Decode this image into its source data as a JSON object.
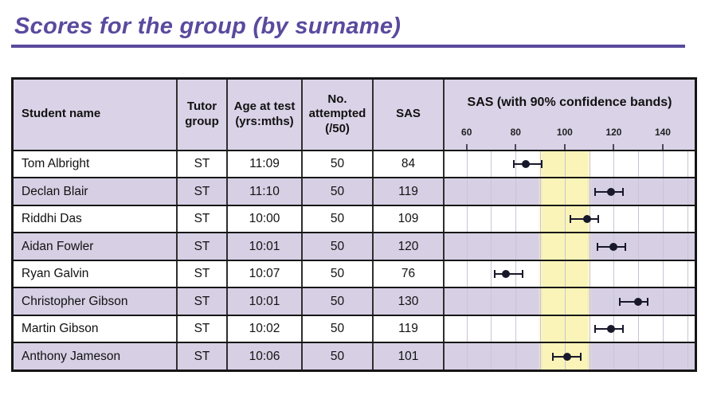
{
  "page": {
    "title": "Scores for the group (by surname)"
  },
  "colors": {
    "title_purple": "#5a4a9e",
    "underline_purple": "#5a4a9e",
    "lavender_header": "#dad2e7",
    "lavender_row": "#d7cfe4",
    "band_yellow": "#faf4b8",
    "gridline": "#c9c5d3",
    "marker": "#18182b",
    "border_dark": "#161616"
  },
  "table": {
    "headers": {
      "student": "Student name",
      "tutor": "Tutor\ngroup",
      "age": "Age at test\n(yrs:mths)",
      "attempted": "No.\nattempted\n(/50)",
      "sas": "SAS",
      "chart": "SAS (with 90% confidence bands)"
    },
    "rows": [
      {
        "name": "Tom Albright",
        "tutor": "ST",
        "age": "11:09",
        "attempted": "50",
        "sas": "84"
      },
      {
        "name": "Declan Blair",
        "tutor": "ST",
        "age": "11:10",
        "attempted": "50",
        "sas": "119"
      },
      {
        "name": "Riddhi Das",
        "tutor": "ST",
        "age": "10:00",
        "attempted": "50",
        "sas": "109"
      },
      {
        "name": "Aidan Fowler",
        "tutor": "ST",
        "age": "10:01",
        "attempted": "50",
        "sas": "120"
      },
      {
        "name": "Ryan Galvin",
        "tutor": "ST",
        "age": "10:07",
        "attempted": "50",
        "sas": "76"
      },
      {
        "name": "Christopher Gibson",
        "tutor": "ST",
        "age": "10:01",
        "attempted": "50",
        "sas": "130"
      },
      {
        "name": "Martin Gibson",
        "tutor": "ST",
        "age": "10:02",
        "attempted": "50",
        "sas": "119"
      },
      {
        "name": "Anthony Jameson",
        "tutor": "ST",
        "age": "10:06",
        "attempted": "50",
        "sas": "101"
      }
    ]
  },
  "chart_data": {
    "type": "scatter",
    "title": "SAS (with 90% confidence bands)",
    "xlabel": "SAS",
    "x_range": [
      51,
      153
    ],
    "x_ticks": [
      60,
      80,
      100,
      120,
      140
    ],
    "gridlines": {
      "step": 10,
      "from": 60,
      "to": 150
    },
    "average_band": {
      "from": 90,
      "to": 110
    },
    "grid": true,
    "legend_position": "none",
    "points": [
      {
        "label": "Tom Albright",
        "value": 84,
        "ci_low": 79,
        "ci_high": 91
      },
      {
        "label": "Declan Blair",
        "value": 119,
        "ci_low": 112,
        "ci_high": 124
      },
      {
        "label": "Riddhi Das",
        "value": 109,
        "ci_low": 102,
        "ci_high": 114
      },
      {
        "label": "Aidan Fowler",
        "value": 120,
        "ci_low": 113,
        "ci_high": 125
      },
      {
        "label": "Ryan Galvin",
        "value": 76,
        "ci_low": 71,
        "ci_high": 83
      },
      {
        "label": "Christopher Gibson",
        "value": 130,
        "ci_low": 122,
        "ci_high": 134
      },
      {
        "label": "Martin Gibson",
        "value": 119,
        "ci_low": 112,
        "ci_high": 124
      },
      {
        "label": "Anthony Jameson",
        "value": 101,
        "ci_low": 95,
        "ci_high": 107
      }
    ]
  }
}
